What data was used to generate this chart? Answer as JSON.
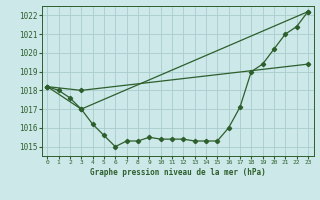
{
  "background_color": "#cce8e8",
  "grid_color": "#aacccc",
  "line_color": "#2d5f2d",
  "title": "Graphe pression niveau de la mer (hPa)",
  "xlim": [
    -0.5,
    23.5
  ],
  "ylim": [
    1014.5,
    1022.5
  ],
  "yticks": [
    1015,
    1016,
    1017,
    1018,
    1019,
    1020,
    1021,
    1022
  ],
  "xtick_labels": [
    "0",
    "1",
    "2",
    "3",
    "4",
    "5",
    "6",
    "7",
    "8",
    "9",
    "10",
    "11",
    "12",
    "13",
    "14",
    "15",
    "16",
    "17",
    "18",
    "19",
    "20",
    "21",
    "22",
    "23"
  ],
  "series": [
    {
      "x": [
        0,
        1,
        2,
        3,
        4,
        5,
        6,
        7,
        8,
        9,
        10,
        11,
        12,
        13,
        14,
        15,
        16,
        17,
        18,
        19,
        20,
        21,
        22,
        23
      ],
      "y": [
        1018.2,
        1018.0,
        1017.6,
        1017.0,
        1016.2,
        1015.6,
        1015.0,
        1015.3,
        1015.3,
        1015.5,
        1015.4,
        1015.4,
        1015.4,
        1015.3,
        1015.3,
        1015.3,
        1016.0,
        1017.1,
        1019.0,
        1019.4,
        1020.2,
        1021.0,
        1021.4,
        1022.2
      ]
    },
    {
      "x": [
        0,
        3,
        23
      ],
      "y": [
        1018.2,
        1017.0,
        1022.2
      ]
    },
    {
      "x": [
        0,
        3,
        23
      ],
      "y": [
        1018.2,
        1018.0,
        1019.4
      ]
    }
  ],
  "figsize": [
    3.2,
    2.0
  ],
  "dpi": 100
}
